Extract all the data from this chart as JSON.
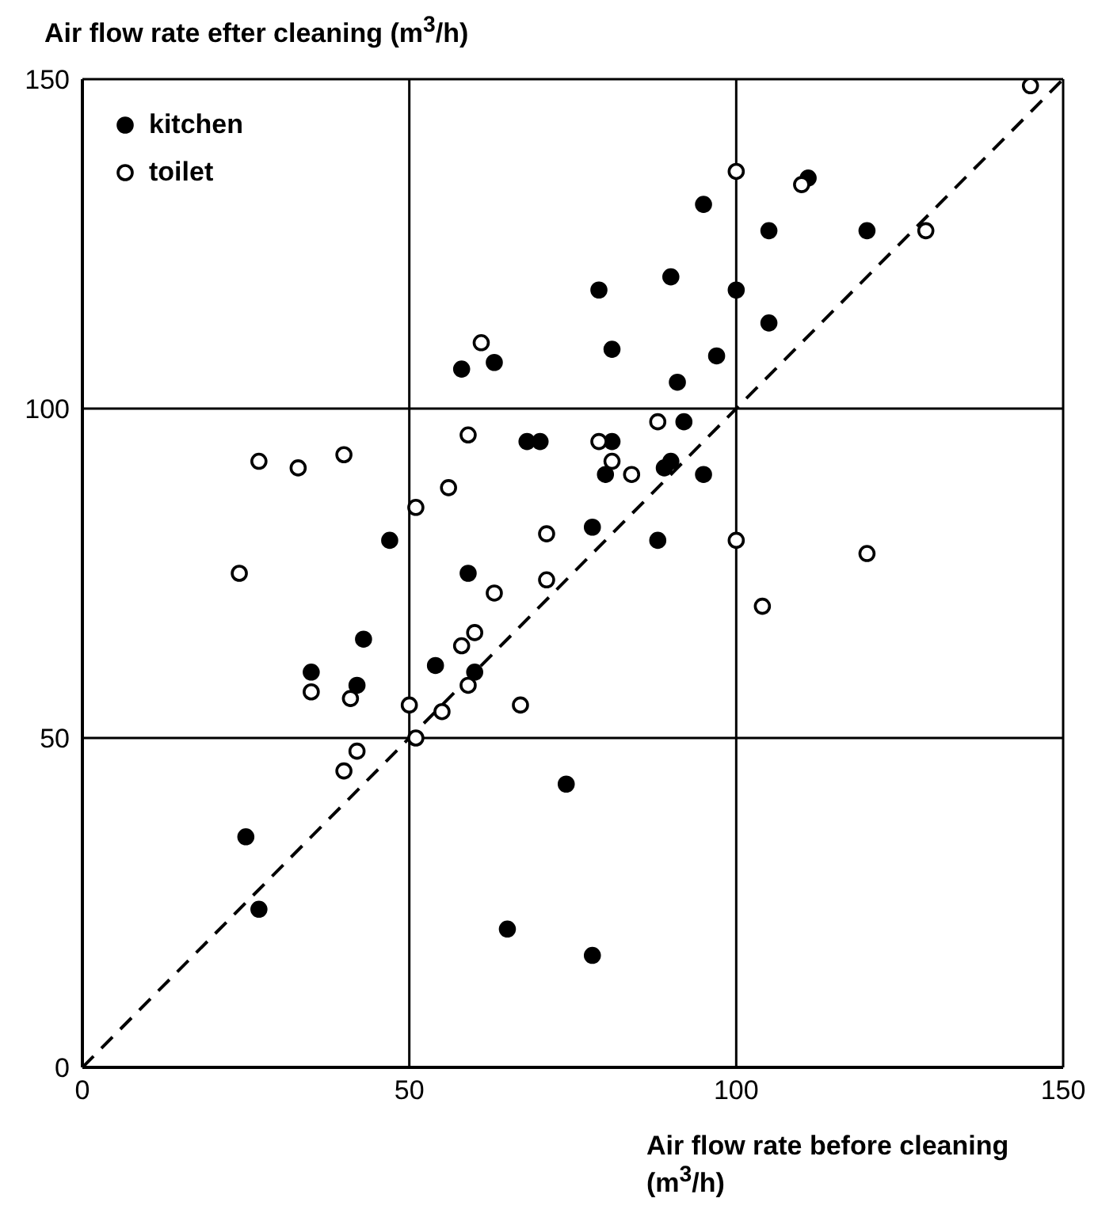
{
  "chart_data": {
    "type": "scatter",
    "xlabel": "Air flow rate before cleaning (m$^{3}$/h)",
    "ylabel": "Air flow rate efter cleaning (m$^{3}$/h)",
    "xlim": [
      0,
      150
    ],
    "ylim": [
      0,
      150
    ],
    "xticks": [
      0,
      50,
      100,
      150
    ],
    "yticks": [
      0,
      50,
      100,
      150
    ],
    "grid": true,
    "legend": "top left",
    "marker": "circle",
    "series": [
      {
        "name": "kitchen",
        "color": "#000000",
        "x": [
          111,
          95,
          105,
          120,
          79,
          90,
          100,
          105,
          81,
          97,
          91,
          92,
          81,
          80,
          89,
          90,
          95,
          78,
          88,
          58,
          63,
          68,
          70,
          47,
          59,
          43,
          35,
          42,
          54,
          60,
          25,
          27,
          65,
          74,
          78
        ],
        "values": [
          135,
          131,
          127,
          127,
          118,
          120,
          118,
          113,
          109,
          108,
          104,
          98,
          95,
          90,
          91,
          92,
          90,
          82,
          80,
          106,
          107,
          95,
          95,
          80,
          75,
          65,
          60,
          58,
          61,
          60,
          35,
          24,
          21,
          43,
          17
        ]
      },
      {
        "name": "toilet",
        "color": "#ffffff",
        "x": [
          110,
          100,
          129,
          145,
          88,
          79,
          81,
          84,
          71,
          100,
          120,
          71,
          104,
          61,
          59,
          27,
          33,
          40,
          56,
          51,
          24,
          63,
          60,
          58,
          35,
          41,
          50,
          55,
          59,
          67,
          51,
          42,
          40
        ],
        "values": [
          134,
          136,
          127,
          149,
          98,
          95,
          92,
          90,
          81,
          80,
          78,
          74,
          70,
          110,
          96,
          92,
          91,
          93,
          88,
          85,
          75,
          72,
          66,
          64,
          57,
          56,
          55,
          54,
          58,
          55,
          50,
          48,
          45
        ]
      },
      {
        "type": "line",
        "color": "#000000",
        "line_style": "dashed",
        "marker": "none",
        "x": [
          0,
          150
        ],
        "values": [
          0,
          150
        ]
      }
    ]
  }
}
